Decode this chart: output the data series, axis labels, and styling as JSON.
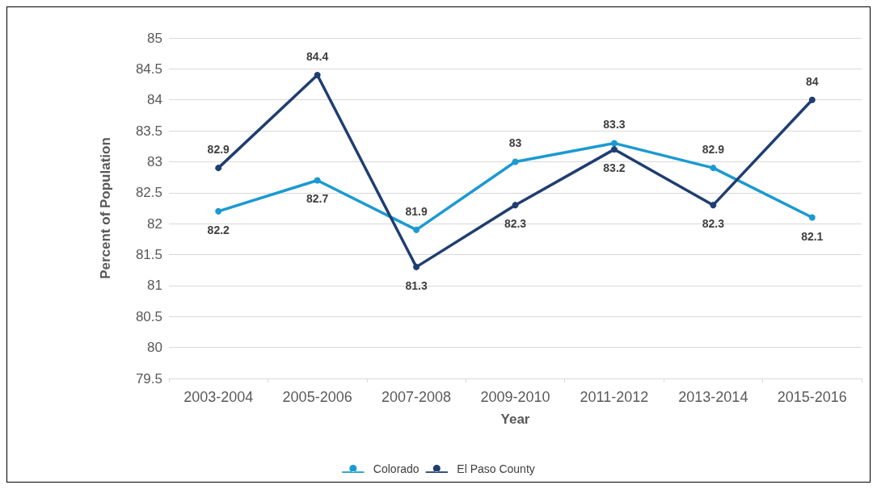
{
  "chart_data": {
    "type": "line",
    "xlabel": "Year",
    "ylabel": "Percent of Population",
    "categories": [
      "2003-2004",
      "2005-2006",
      "2007-2008",
      "2009-2010",
      "2011-2012",
      "2013-2014",
      "2015-2016"
    ],
    "series": [
      {
        "name": "Colorado",
        "color": "#1b9ad2",
        "values": [
          82.2,
          82.7,
          81.9,
          83,
          83.3,
          82.9,
          82.1
        ]
      },
      {
        "name": "El Paso County",
        "color": "#1f3e72",
        "values": [
          82.9,
          84.4,
          81.3,
          82.3,
          83.2,
          82.3,
          84
        ]
      }
    ],
    "ylim": [
      79.5,
      85
    ],
    "yticks": [
      79.5,
      80,
      80.5,
      81,
      81.5,
      82,
      82.5,
      83,
      83.5,
      84,
      84.5,
      85
    ],
    "grid": "y",
    "legend": "bottom",
    "marker": "circle",
    "line_style": "solid",
    "data_labels": true
  }
}
